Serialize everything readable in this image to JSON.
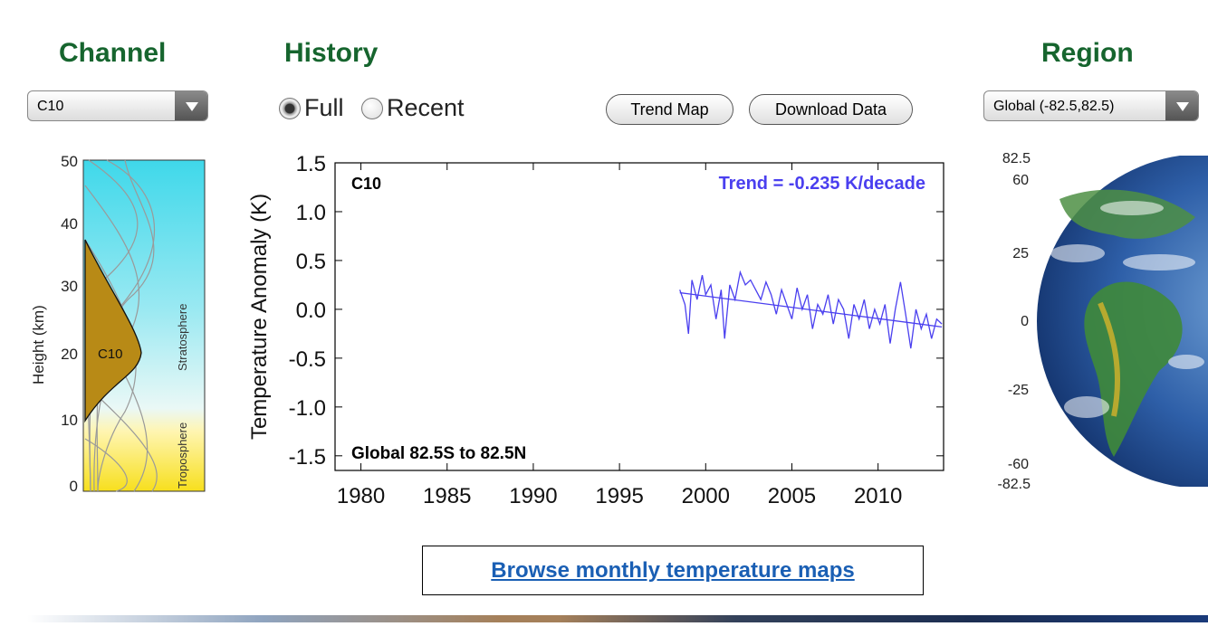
{
  "headers": {
    "channel": "Channel",
    "history": "History",
    "region": "Region"
  },
  "channel_select": {
    "value": "C10"
  },
  "history": {
    "options": [
      {
        "label": "Full",
        "selected": true
      },
      {
        "label": "Recent",
        "selected": false
      }
    ]
  },
  "buttons": {
    "trend_map": "Trend Map",
    "download_data": "Download Data"
  },
  "region_select": {
    "value": "Global (-82.5,82.5)"
  },
  "weighting_panel": {
    "ylabel": "Height  (km)",
    "yticks": [
      "50",
      "40",
      "30",
      "20",
      "10",
      "0"
    ],
    "channel_label": "C10",
    "layer_labels": {
      "stratosphere": "Stratosphere",
      "troposphere": "Troposphere"
    }
  },
  "chart_data": {
    "type": "line",
    "channel_label": "C10",
    "trend_text": "Trend = -0.235 K/decade",
    "region_text": "Global  82.5S to  82.5N",
    "ylabel": "Temperature Anomaly (K)",
    "xlabel": "",
    "xlim": [
      1978.5,
      2013.8
    ],
    "ylim": [
      -1.5,
      1.5
    ],
    "xticks": [
      "1980",
      "1985",
      "1990",
      "1995",
      "2000",
      "2005",
      "2010"
    ],
    "yticks": [
      "1.5",
      "1.0",
      "0.5",
      "0.0",
      "-0.5",
      "-1.0",
      "-1.5"
    ],
    "series": [
      {
        "x": [
          1998.5,
          1998.8,
          1999.0,
          1999.2,
          1999.5,
          1999.8,
          2000.0,
          2000.3,
          2000.6,
          2000.9,
          2001.1,
          2001.4,
          2001.7,
          2002.0,
          2002.3,
          2002.6,
          2002.9,
          2003.2,
          2003.5,
          2003.8,
          2004.1,
          2004.4,
          2004.7,
          2005.0,
          2005.3,
          2005.6,
          2005.9,
          2006.2,
          2006.5,
          2006.8,
          2007.1,
          2007.4,
          2007.7,
          2008.0,
          2008.3,
          2008.6,
          2008.9,
          2009.2,
          2009.5,
          2009.8,
          2010.1,
          2010.4,
          2010.7,
          2011.0,
          2011.3,
          2011.6,
          2011.9,
          2012.2,
          2012.5,
          2012.8,
          2013.1,
          2013.4,
          2013.7
        ],
        "y": [
          0.2,
          0.05,
          -0.25,
          0.3,
          0.1,
          0.35,
          0.15,
          0.25,
          -0.1,
          0.2,
          -0.3,
          0.25,
          0.1,
          0.38,
          0.25,
          0.3,
          0.2,
          0.1,
          0.28,
          0.15,
          -0.05,
          0.2,
          0.05,
          -0.1,
          0.22,
          0.0,
          0.15,
          -0.2,
          0.05,
          -0.05,
          0.15,
          -0.15,
          0.1,
          0.0,
          -0.3,
          0.05,
          -0.1,
          0.1,
          -0.2,
          0.0,
          -0.15,
          0.05,
          -0.35,
          0.0,
          0.28,
          -0.05,
          -0.4,
          0.0,
          -0.2,
          -0.05,
          -0.3,
          -0.1,
          -0.15
        ]
      }
    ],
    "trend_line": {
      "x": [
        1998.5,
        2013.7
      ],
      "y": [
        0.17,
        -0.18
      ]
    },
    "line_color": "#4a3fef"
  },
  "globe_panel": {
    "lat_ticks": [
      "82.5",
      "60",
      "25",
      "0",
      "-25",
      "-60",
      "-82.5"
    ]
  },
  "link": {
    "label": "Browse monthly temperature maps"
  }
}
